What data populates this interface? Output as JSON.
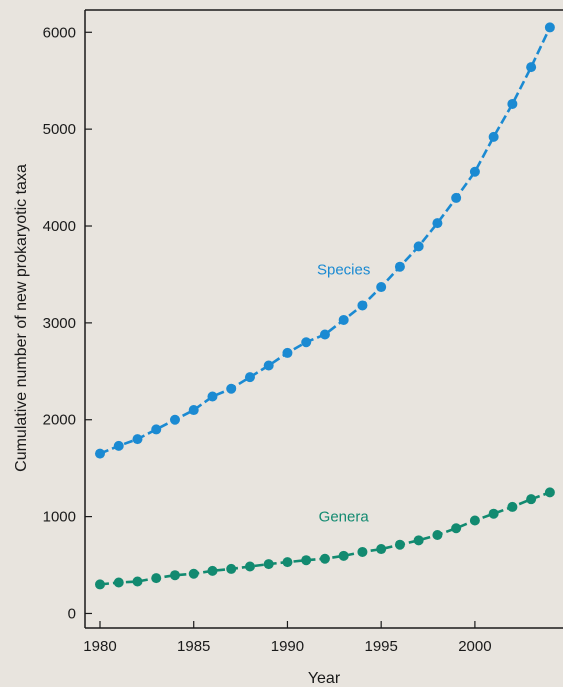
{
  "chart_data": {
    "type": "line",
    "title": "",
    "xlabel": "Year",
    "ylabel": "Cumulative number of new prokaryotic taxa",
    "xlim": [
      1979.2,
      2004.7
    ],
    "ylim": [
      -150,
      6230
    ],
    "x_ticks": [
      1980,
      1985,
      1990,
      1995,
      2000
    ],
    "y_ticks": [
      0,
      1000,
      2000,
      3000,
      4000,
      5000,
      6000
    ],
    "x_tick_labels": [
      "1980",
      "1985",
      "1990",
      "1995",
      "2000"
    ],
    "y_tick_labels": [
      "0",
      "1000",
      "2000",
      "3000",
      "4000",
      "5000",
      "6000"
    ],
    "grid": false,
    "line_style": "dashed",
    "x": [
      1980,
      1981,
      1982,
      1983,
      1984,
      1985,
      1986,
      1987,
      1988,
      1989,
      1990,
      1991,
      1992,
      1993,
      1994,
      1995,
      1996,
      1997,
      1998,
      1999,
      2000,
      2001,
      2002,
      2003,
      2004
    ],
    "series": [
      {
        "name": "Species",
        "color": "#1b8ad2",
        "label_at": {
          "x": 1993,
          "y": 3500
        },
        "values": [
          1650,
          1730,
          1800,
          1900,
          2000,
          2100,
          2240,
          2320,
          2440,
          2560,
          2690,
          2800,
          2880,
          3030,
          3180,
          3370,
          3580,
          3790,
          4030,
          4290,
          4560,
          4920,
          5260,
          5640,
          6050
        ]
      },
      {
        "name": "Genera",
        "color": "#128a70",
        "label_at": {
          "x": 1993,
          "y": 950
        },
        "values": [
          300,
          320,
          330,
          365,
          395,
          410,
          440,
          460,
          485,
          510,
          530,
          550,
          565,
          595,
          635,
          665,
          710,
          755,
          810,
          880,
          960,
          1030,
          1100,
          1180,
          1250
        ]
      }
    ]
  }
}
